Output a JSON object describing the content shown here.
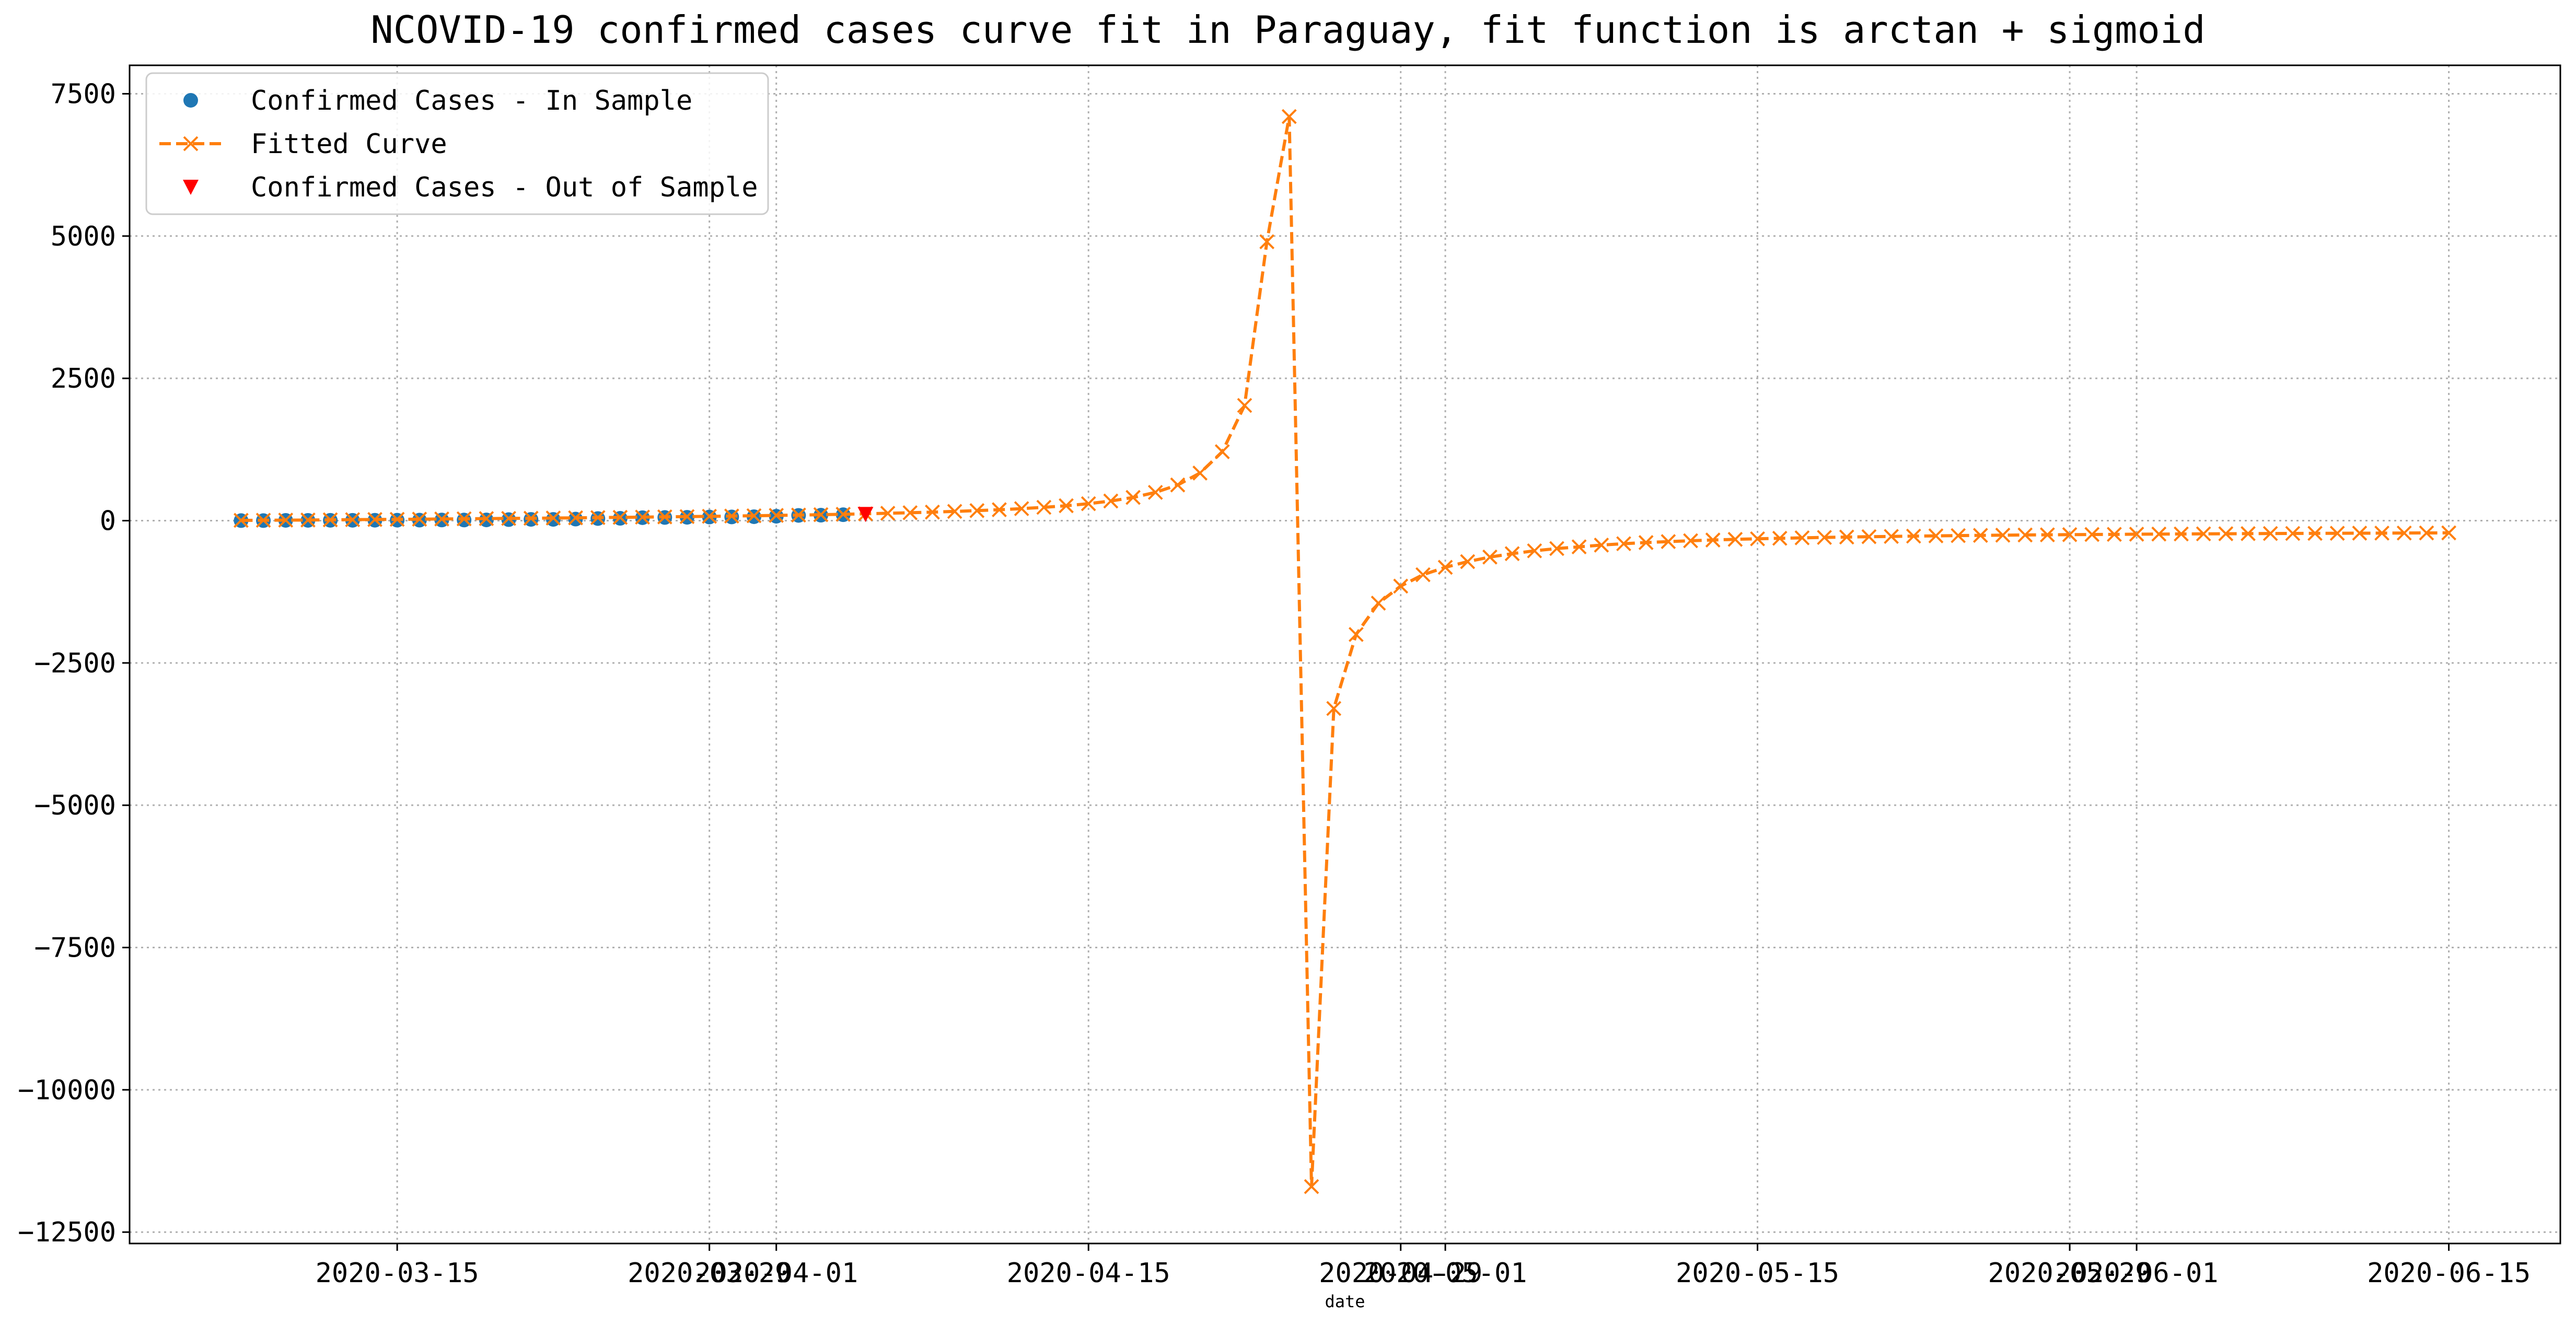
{
  "chart_data": {
    "type": "line",
    "title": "NCOVID-19 confirmed cases curve fit in Paraguay, fit function is arctan + sigmoid",
    "xlabel": "date",
    "ylabel": "",
    "x_type": "date",
    "xlim": [
      "2020-03-03",
      "2020-06-20"
    ],
    "ylim": [
      -12700,
      8000
    ],
    "x_ticks": [
      "2020-03-15",
      "2020-03-29",
      "2020-04-01",
      "2020-04-15",
      "2020-04-29",
      "2020-05-01",
      "2020-05-15",
      "2020-05-29",
      "2020-06-01",
      "2020-06-15"
    ],
    "y_ticks": [
      7500,
      5000,
      2500,
      0,
      -2500,
      -5000,
      -7500,
      -10000,
      -12500
    ],
    "y_tick_labels": [
      "7500",
      "5000",
      "2500",
      "0",
      "−2500",
      "−5000",
      "−7500",
      "−10000",
      "−12500"
    ],
    "grid": true,
    "legend_position": "top-left",
    "series": [
      {
        "name": "Confirmed Cases - In Sample",
        "kind": "scatter",
        "marker": "circle",
        "color": "#1f77b4",
        "x": [
          "2020-03-08",
          "2020-03-09",
          "2020-03-10",
          "2020-03-11",
          "2020-03-12",
          "2020-03-13",
          "2020-03-14",
          "2020-03-15",
          "2020-03-16",
          "2020-03-17",
          "2020-03-18",
          "2020-03-19",
          "2020-03-20",
          "2020-03-21",
          "2020-03-22",
          "2020-03-23",
          "2020-03-24",
          "2020-03-25",
          "2020-03-26",
          "2020-03-27",
          "2020-03-28",
          "2020-03-29",
          "2020-03-30",
          "2020-03-31",
          "2020-04-01",
          "2020-04-02",
          "2020-04-03",
          "2020-04-04"
        ],
        "y": [
          1,
          1,
          5,
          5,
          6,
          6,
          7,
          8,
          9,
          11,
          11,
          13,
          18,
          22,
          22,
          27,
          37,
          41,
          52,
          56,
          59,
          64,
          65,
          69,
          77,
          92,
          96,
          104
        ]
      },
      {
        "name": "Fitted Curve",
        "kind": "line",
        "marker": "x",
        "dashed": true,
        "color": "#ff7f0e",
        "x": [
          "2020-03-08",
          "2020-03-09",
          "2020-03-10",
          "2020-03-11",
          "2020-03-12",
          "2020-03-13",
          "2020-03-14",
          "2020-03-15",
          "2020-03-16",
          "2020-03-17",
          "2020-03-18",
          "2020-03-19",
          "2020-03-20",
          "2020-03-21",
          "2020-03-22",
          "2020-03-23",
          "2020-03-24",
          "2020-03-25",
          "2020-03-26",
          "2020-03-27",
          "2020-03-28",
          "2020-03-29",
          "2020-03-30",
          "2020-03-31",
          "2020-04-01",
          "2020-04-02",
          "2020-04-03",
          "2020-04-04",
          "2020-04-05",
          "2020-04-06",
          "2020-04-07",
          "2020-04-08",
          "2020-04-09",
          "2020-04-10",
          "2020-04-11",
          "2020-04-12",
          "2020-04-13",
          "2020-04-14",
          "2020-04-15",
          "2020-04-16",
          "2020-04-17",
          "2020-04-18",
          "2020-04-19",
          "2020-04-20",
          "2020-04-21",
          "2020-04-22",
          "2020-04-23",
          "2020-04-24",
          "2020-04-25",
          "2020-04-26",
          "2020-04-27",
          "2020-04-28",
          "2020-04-29",
          "2020-04-30",
          "2020-05-01",
          "2020-05-02",
          "2020-05-03",
          "2020-05-04",
          "2020-05-05",
          "2020-05-06",
          "2020-05-07",
          "2020-05-08",
          "2020-05-09",
          "2020-05-10",
          "2020-05-11",
          "2020-05-12",
          "2020-05-13",
          "2020-05-14",
          "2020-05-15",
          "2020-05-16",
          "2020-05-17",
          "2020-05-18",
          "2020-05-19",
          "2020-05-20",
          "2020-05-21",
          "2020-05-22",
          "2020-05-23",
          "2020-05-24",
          "2020-05-25",
          "2020-05-26",
          "2020-05-27",
          "2020-05-28",
          "2020-05-29",
          "2020-05-30",
          "2020-05-31",
          "2020-06-01",
          "2020-06-02",
          "2020-06-03",
          "2020-06-04",
          "2020-06-05",
          "2020-06-06",
          "2020-06-07",
          "2020-06-08",
          "2020-06-09",
          "2020-06-10",
          "2020-06-11",
          "2020-06-12",
          "2020-06-13",
          "2020-06-14",
          "2020-06-15"
        ],
        "y": [
          5,
          7,
          9,
          11,
          14,
          17,
          20,
          23,
          26,
          29,
          32,
          36,
          39,
          42,
          46,
          50,
          54,
          58,
          62,
          66,
          71,
          76,
          81,
          86,
          92,
          98,
          105,
          112,
          120,
          129,
          139,
          150,
          162,
          176,
          192,
          211,
          234,
          262,
          298,
          345,
          408,
          497,
          627,
          836,
          1211,
          2024,
          4900,
          7100,
          -11700,
          -3300,
          -2000,
          -1450,
          -1150,
          -950,
          -820,
          -720,
          -640,
          -580,
          -530,
          -490,
          -460,
          -430,
          -405,
          -385,
          -368,
          -353,
          -340,
          -329,
          -319,
          -310,
          -302,
          -295,
          -288,
          -282,
          -277,
          -272,
          -267,
          -263,
          -259,
          -255,
          -252,
          -249,
          -246,
          -243,
          -241,
          -238,
          -236,
          -234,
          -232,
          -230,
          -228,
          -226,
          -225,
          -223,
          -222,
          -220,
          -219,
          -218,
          -216,
          -215
        ]
      },
      {
        "name": "Confirmed Cases - Out of Sample",
        "kind": "scatter",
        "marker": "triangle-down",
        "color": "#ff0000",
        "x": [
          "2020-04-05"
        ],
        "y": [
          113
        ]
      }
    ]
  }
}
